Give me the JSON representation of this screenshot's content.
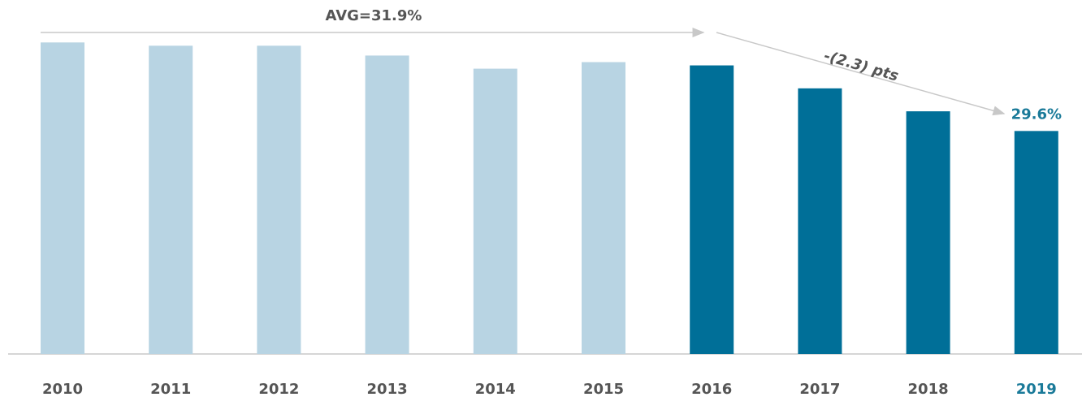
{
  "chart_data": {
    "type": "bar",
    "categories": [
      "2010",
      "2011",
      "2012",
      "2013",
      "2014",
      "2015",
      "2016",
      "2017",
      "2018",
      "2019"
    ],
    "values": [
      32.3,
      32.2,
      32.2,
      31.9,
      31.5,
      31.7,
      31.6,
      30.9,
      30.2,
      29.6
    ],
    "value_labels": [
      null,
      null,
      null,
      null,
      null,
      null,
      null,
      null,
      null,
      "29.6%"
    ],
    "colors": [
      "#b8d4e3",
      "#b8d4e3",
      "#b8d4e3",
      "#b8d4e3",
      "#b8d4e3",
      "#b8d4e3",
      "#006f98",
      "#006f98",
      "#006f98",
      "#006f98"
    ],
    "label_colors": [
      "#555555",
      "#555555",
      "#555555",
      "#555555",
      "#555555",
      "#555555",
      "#555555",
      "#555555",
      "#555555",
      "#1a7a99"
    ],
    "ylim": [
      22.8,
      33
    ],
    "annotations": [
      "AVG=31.9%",
      "-(2.3) pts"
    ]
  }
}
